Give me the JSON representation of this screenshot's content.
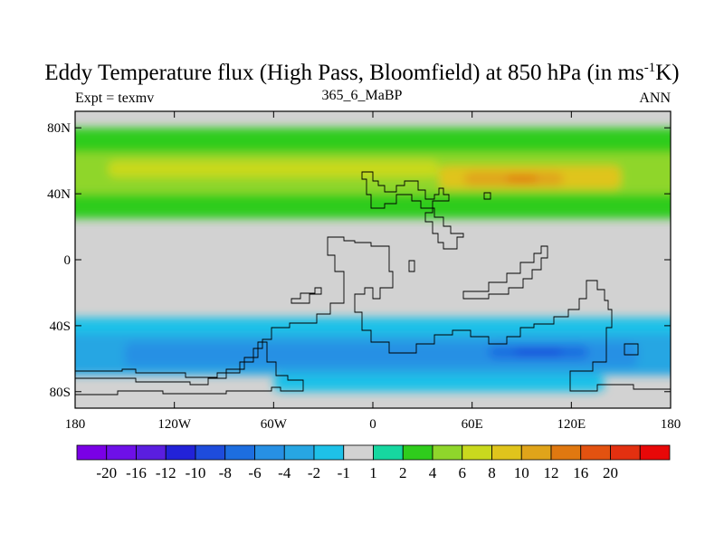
{
  "title": {
    "main_prefix": "Eddy Temperature flux (High Pass, Bloomfield) at 850 hPa (in ms",
    "superscript": "-1",
    "main_suffix": "K)"
  },
  "subtitle": {
    "left": "Expt = texmv",
    "center": "365_6_MaBP",
    "right": "ANN"
  },
  "axes": {
    "x_ticks": [
      {
        "value": -180,
        "label": "180"
      },
      {
        "value": -120,
        "label": "120W"
      },
      {
        "value": -60,
        "label": "60W"
      },
      {
        "value": 0,
        "label": "0"
      },
      {
        "value": 60,
        "label": "60E"
      },
      {
        "value": 120,
        "label": "120E"
      },
      {
        "value": 180,
        "label": "180"
      }
    ],
    "y_ticks": [
      {
        "value": 80,
        "label": "80N"
      },
      {
        "value": 40,
        "label": "40N"
      },
      {
        "value": 0,
        "label": "0"
      },
      {
        "value": -40,
        "label": "40S"
      },
      {
        "value": -80,
        "label": "80S"
      }
    ],
    "lon_range": [
      -180,
      180
    ],
    "lat_range": [
      -90,
      90
    ]
  },
  "colorbar": {
    "colors": [
      "#7a00e6",
      "#6e10e8",
      "#5a1ee0",
      "#2222d8",
      "#1e4cdc",
      "#1d6ee0",
      "#2790e4",
      "#27a6e3",
      "#1ec1e8",
      "#d2d2d2",
      "#16d7a0",
      "#2fcc1c",
      "#8fd62b",
      "#c9d91e",
      "#e0c41c",
      "#e0a41a",
      "#e07810",
      "#e35210",
      "#e33010",
      "#e80808"
    ],
    "labels": [
      "-20",
      "-16",
      "-12",
      "-10",
      "-8",
      "-6",
      "-4",
      "-2",
      "-1",
      "1",
      "2",
      "4",
      "6",
      "8",
      "10",
      "12",
      "16",
      "20"
    ],
    "background_color": "#d2d2d2"
  },
  "chart_data": {
    "type": "heatmap",
    "field": "Eddy Temperature flux (High Pass, Bloomfield) at 850 hPa",
    "units": "ms-1K",
    "levels": [
      -20,
      -16,
      -12,
      -10,
      -8,
      -6,
      -4,
      -2,
      -1,
      1,
      2,
      4,
      6,
      8,
      10,
      12,
      16,
      20
    ],
    "regions": [
      {
        "lat_range": [
          65,
          80
        ],
        "lon_range": [
          -180,
          180
        ],
        "value": 2
      },
      {
        "lat_range": [
          40,
          65
        ],
        "lon_range": [
          -180,
          180
        ],
        "value": 4
      },
      {
        "lat_range": [
          50,
          60
        ],
        "lon_range": [
          -160,
          40
        ],
        "value": 6
      },
      {
        "lat_range": [
          43,
          57
        ],
        "lon_range": [
          40,
          150
        ],
        "value": 8
      },
      {
        "lat_range": [
          45,
          53
        ],
        "lon_range": [
          55,
          115
        ],
        "value": 10
      },
      {
        "lat_range": [
          47,
          51
        ],
        "lon_range": [
          80,
          100
        ],
        "value": 12
      },
      {
        "lat_range": [
          25,
          40
        ],
        "lon_range": [
          -180,
          180
        ],
        "value": 2
      },
      {
        "lat_range": [
          -55,
          -35
        ],
        "lon_range": [
          -180,
          180
        ],
        "value": -2
      },
      {
        "lat_range": [
          -70,
          -45
        ],
        "lon_range": [
          -180,
          180
        ],
        "value": -4
      },
      {
        "lat_range": [
          -65,
          -50
        ],
        "lon_range": [
          -150,
          160
        ],
        "value": -6
      },
      {
        "lat_range": [
          -60,
          -52
        ],
        "lon_range": [
          70,
          130
        ],
        "value": -8
      },
      {
        "lat_range": [
          -58,
          -54
        ],
        "lon_range": [
          85,
          115
        ],
        "value": -10
      },
      {
        "lat_range": [
          -80,
          -70
        ],
        "lon_range": [
          -60,
          140
        ],
        "value": -2
      }
    ]
  }
}
